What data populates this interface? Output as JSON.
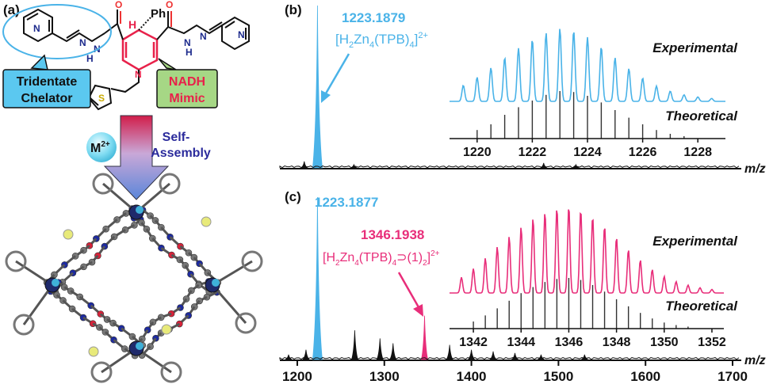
{
  "panel_a": {
    "label": "(a)",
    "substituent": "Ph",
    "h_label": "H",
    "chelator_label": [
      "Tridentate",
      "Chelator"
    ],
    "mimic_label": [
      "NADH",
      "Mimic"
    ],
    "metal_base": "M",
    "metal_sup": "2+",
    "assembly_label": [
      "Self-",
      "Assembly"
    ],
    "colors": {
      "chelator_box": "#5bc8f0",
      "mimic_box": "#a6d785",
      "mimic_text": "#e8214a",
      "arrow": "#6d8bd6"
    }
  },
  "chart_data": [
    {
      "panel": "(b)",
      "type": "line",
      "peak_label": "1223.1879",
      "species": {
        "p1": "[H",
        "s1": "2",
        "p2": "Zn",
        "s2": "4",
        "p3": "(TPB)",
        "s3": "4",
        "p4": "]",
        "sup": "2+"
      },
      "xlabel": "m/z",
      "main_peaks": [
        {
          "mz": 1223.2,
          "rel": 1.0,
          "color": "#4ab3e8"
        },
        {
          "mz": 1208,
          "rel": 0.04,
          "color": "#111111"
        },
        {
          "mz": 1265,
          "rel": 0.02,
          "color": "#111111"
        },
        {
          "mz": 1483,
          "rel": 0.03,
          "color": "#111111"
        },
        {
          "mz": 1520,
          "rel": 0.02,
          "color": "#111111"
        }
      ],
      "inset": {
        "xlim": [
          1219,
          1229
        ],
        "xticks": [
          1220,
          1222,
          1224,
          1226,
          1228
        ],
        "experimental_label": "Experimental",
        "theoretical_label": "Theoretical",
        "peak_spacing": 0.5,
        "experimental": [
          {
            "mz": 1219.5,
            "rel": 0.22
          },
          {
            "mz": 1220.0,
            "rel": 0.33
          },
          {
            "mz": 1220.5,
            "rel": 0.46
          },
          {
            "mz": 1221.0,
            "rel": 0.6
          },
          {
            "mz": 1221.5,
            "rel": 0.73
          },
          {
            "mz": 1222.0,
            "rel": 0.85
          },
          {
            "mz": 1222.5,
            "rel": 0.94
          },
          {
            "mz": 1223.0,
            "rel": 1.0
          },
          {
            "mz": 1223.5,
            "rel": 0.97
          },
          {
            "mz": 1224.0,
            "rel": 0.88
          },
          {
            "mz": 1224.5,
            "rel": 0.75
          },
          {
            "mz": 1225.0,
            "rel": 0.6
          },
          {
            "mz": 1225.5,
            "rel": 0.45
          },
          {
            "mz": 1226.0,
            "rel": 0.32
          },
          {
            "mz": 1226.5,
            "rel": 0.21
          },
          {
            "mz": 1227.0,
            "rel": 0.14
          },
          {
            "mz": 1227.5,
            "rel": 0.09
          },
          {
            "mz": 1228.0,
            "rel": 0.06
          },
          {
            "mz": 1228.5,
            "rel": 0.04
          }
        ],
        "theoretical": [
          {
            "mz": 1220.0,
            "rel": 0.18
          },
          {
            "mz": 1220.5,
            "rel": 0.3
          },
          {
            "mz": 1221.0,
            "rel": 0.5
          },
          {
            "mz": 1221.5,
            "rel": 0.66
          },
          {
            "mz": 1222.0,
            "rel": 0.8
          },
          {
            "mz": 1222.5,
            "rel": 0.92
          },
          {
            "mz": 1223.0,
            "rel": 1.0
          },
          {
            "mz": 1223.5,
            "rel": 0.98
          },
          {
            "mz": 1224.0,
            "rel": 0.9
          },
          {
            "mz": 1224.5,
            "rel": 0.76
          },
          {
            "mz": 1225.0,
            "rel": 0.6
          },
          {
            "mz": 1225.5,
            "rel": 0.44
          },
          {
            "mz": 1226.0,
            "rel": 0.3
          },
          {
            "mz": 1226.5,
            "rel": 0.18
          },
          {
            "mz": 1227.0,
            "rel": 0.1
          },
          {
            "mz": 1227.5,
            "rel": 0.05
          }
        ],
        "experimental_color": "#4ab3e8",
        "theoretical_color": "#333333"
      }
    },
    {
      "panel": "(c)",
      "type": "line",
      "peak_label": "1223.1877",
      "peak2_label": "1346.1938",
      "species": {
        "p1": "[H",
        "s1": "2",
        "p2": "Zn",
        "s2": "4",
        "p3": "(TPB)",
        "s3": "4",
        "p4": "⊃(1)",
        "s4": "2",
        "p5": "]",
        "sup": "2+"
      },
      "xlabel": "m/z",
      "xlim": [
        1180,
        1710
      ],
      "xticks": [
        1200,
        1300,
        1400,
        1500,
        1600,
        1700
      ],
      "main_peaks": [
        {
          "mz": 1223.2,
          "rel": 1.0,
          "color": "#4ab3e8"
        },
        {
          "mz": 1346.2,
          "rel": 0.27,
          "color": "#e82e7a"
        },
        {
          "mz": 1266,
          "rel": 0.18,
          "color": "#111111"
        },
        {
          "mz": 1295,
          "rel": 0.13,
          "color": "#111111"
        },
        {
          "mz": 1310,
          "rel": 0.1,
          "color": "#111111"
        },
        {
          "mz": 1375,
          "rel": 0.09,
          "color": "#111111"
        },
        {
          "mz": 1400,
          "rel": 0.06,
          "color": "#111111"
        },
        {
          "mz": 1425,
          "rel": 0.05,
          "color": "#111111"
        },
        {
          "mz": 1450,
          "rel": 0.04,
          "color": "#111111"
        },
        {
          "mz": 1480,
          "rel": 0.03,
          "color": "#111111"
        },
        {
          "mz": 1530,
          "rel": 0.03,
          "color": "#111111"
        },
        {
          "mz": 1210,
          "rel": 0.06,
          "color": "#111111"
        },
        {
          "mz": 1190,
          "rel": 0.03,
          "color": "#111111"
        }
      ],
      "inset": {
        "xlim": [
          1341,
          1352.5
        ],
        "xticks": [
          1342,
          1344,
          1346,
          1348,
          1350,
          1352
        ],
        "experimental_label": "Experimental",
        "theoretical_label": "Theoretical",
        "experimental": [
          {
            "mz": 1341.5,
            "rel": 0.18
          },
          {
            "mz": 1342.0,
            "rel": 0.28
          },
          {
            "mz": 1342.5,
            "rel": 0.4
          },
          {
            "mz": 1343.0,
            "rel": 0.53
          },
          {
            "mz": 1343.5,
            "rel": 0.65
          },
          {
            "mz": 1344.0,
            "rel": 0.76
          },
          {
            "mz": 1344.5,
            "rel": 0.86
          },
          {
            "mz": 1345.0,
            "rel": 0.93
          },
          {
            "mz": 1345.5,
            "rel": 0.98
          },
          {
            "mz": 1346.0,
            "rel": 1.0
          },
          {
            "mz": 1346.5,
            "rel": 0.96
          },
          {
            "mz": 1347.0,
            "rel": 0.88
          },
          {
            "mz": 1347.5,
            "rel": 0.77
          },
          {
            "mz": 1348.0,
            "rel": 0.64
          },
          {
            "mz": 1348.5,
            "rel": 0.5
          },
          {
            "mz": 1349.0,
            "rel": 0.38
          },
          {
            "mz": 1349.5,
            "rel": 0.27
          },
          {
            "mz": 1350.0,
            "rel": 0.19
          },
          {
            "mz": 1350.5,
            "rel": 0.13
          },
          {
            "mz": 1351.0,
            "rel": 0.09
          },
          {
            "mz": 1351.5,
            "rel": 0.06
          },
          {
            "mz": 1352.0,
            "rel": 0.04
          }
        ],
        "theoretical": [
          {
            "mz": 1342.0,
            "rel": 0.14
          },
          {
            "mz": 1342.5,
            "rel": 0.26
          },
          {
            "mz": 1343.0,
            "rel": 0.4
          },
          {
            "mz": 1343.5,
            "rel": 0.55
          },
          {
            "mz": 1344.0,
            "rel": 0.7
          },
          {
            "mz": 1344.5,
            "rel": 0.82
          },
          {
            "mz": 1345.0,
            "rel": 0.92
          },
          {
            "mz": 1345.5,
            "rel": 0.98
          },
          {
            "mz": 1346.0,
            "rel": 1.0
          },
          {
            "mz": 1346.5,
            "rel": 0.96
          },
          {
            "mz": 1347.0,
            "rel": 0.86
          },
          {
            "mz": 1347.5,
            "rel": 0.73
          },
          {
            "mz": 1348.0,
            "rel": 0.58
          },
          {
            "mz": 1348.5,
            "rel": 0.44
          },
          {
            "mz": 1349.0,
            "rel": 0.31
          },
          {
            "mz": 1349.5,
            "rel": 0.2
          },
          {
            "mz": 1350.0,
            "rel": 0.12
          },
          {
            "mz": 1350.5,
            "rel": 0.07
          },
          {
            "mz": 1351.0,
            "rel": 0.04
          }
        ],
        "experimental_color": "#e82e7a",
        "theoretical_color": "#333333"
      }
    }
  ]
}
